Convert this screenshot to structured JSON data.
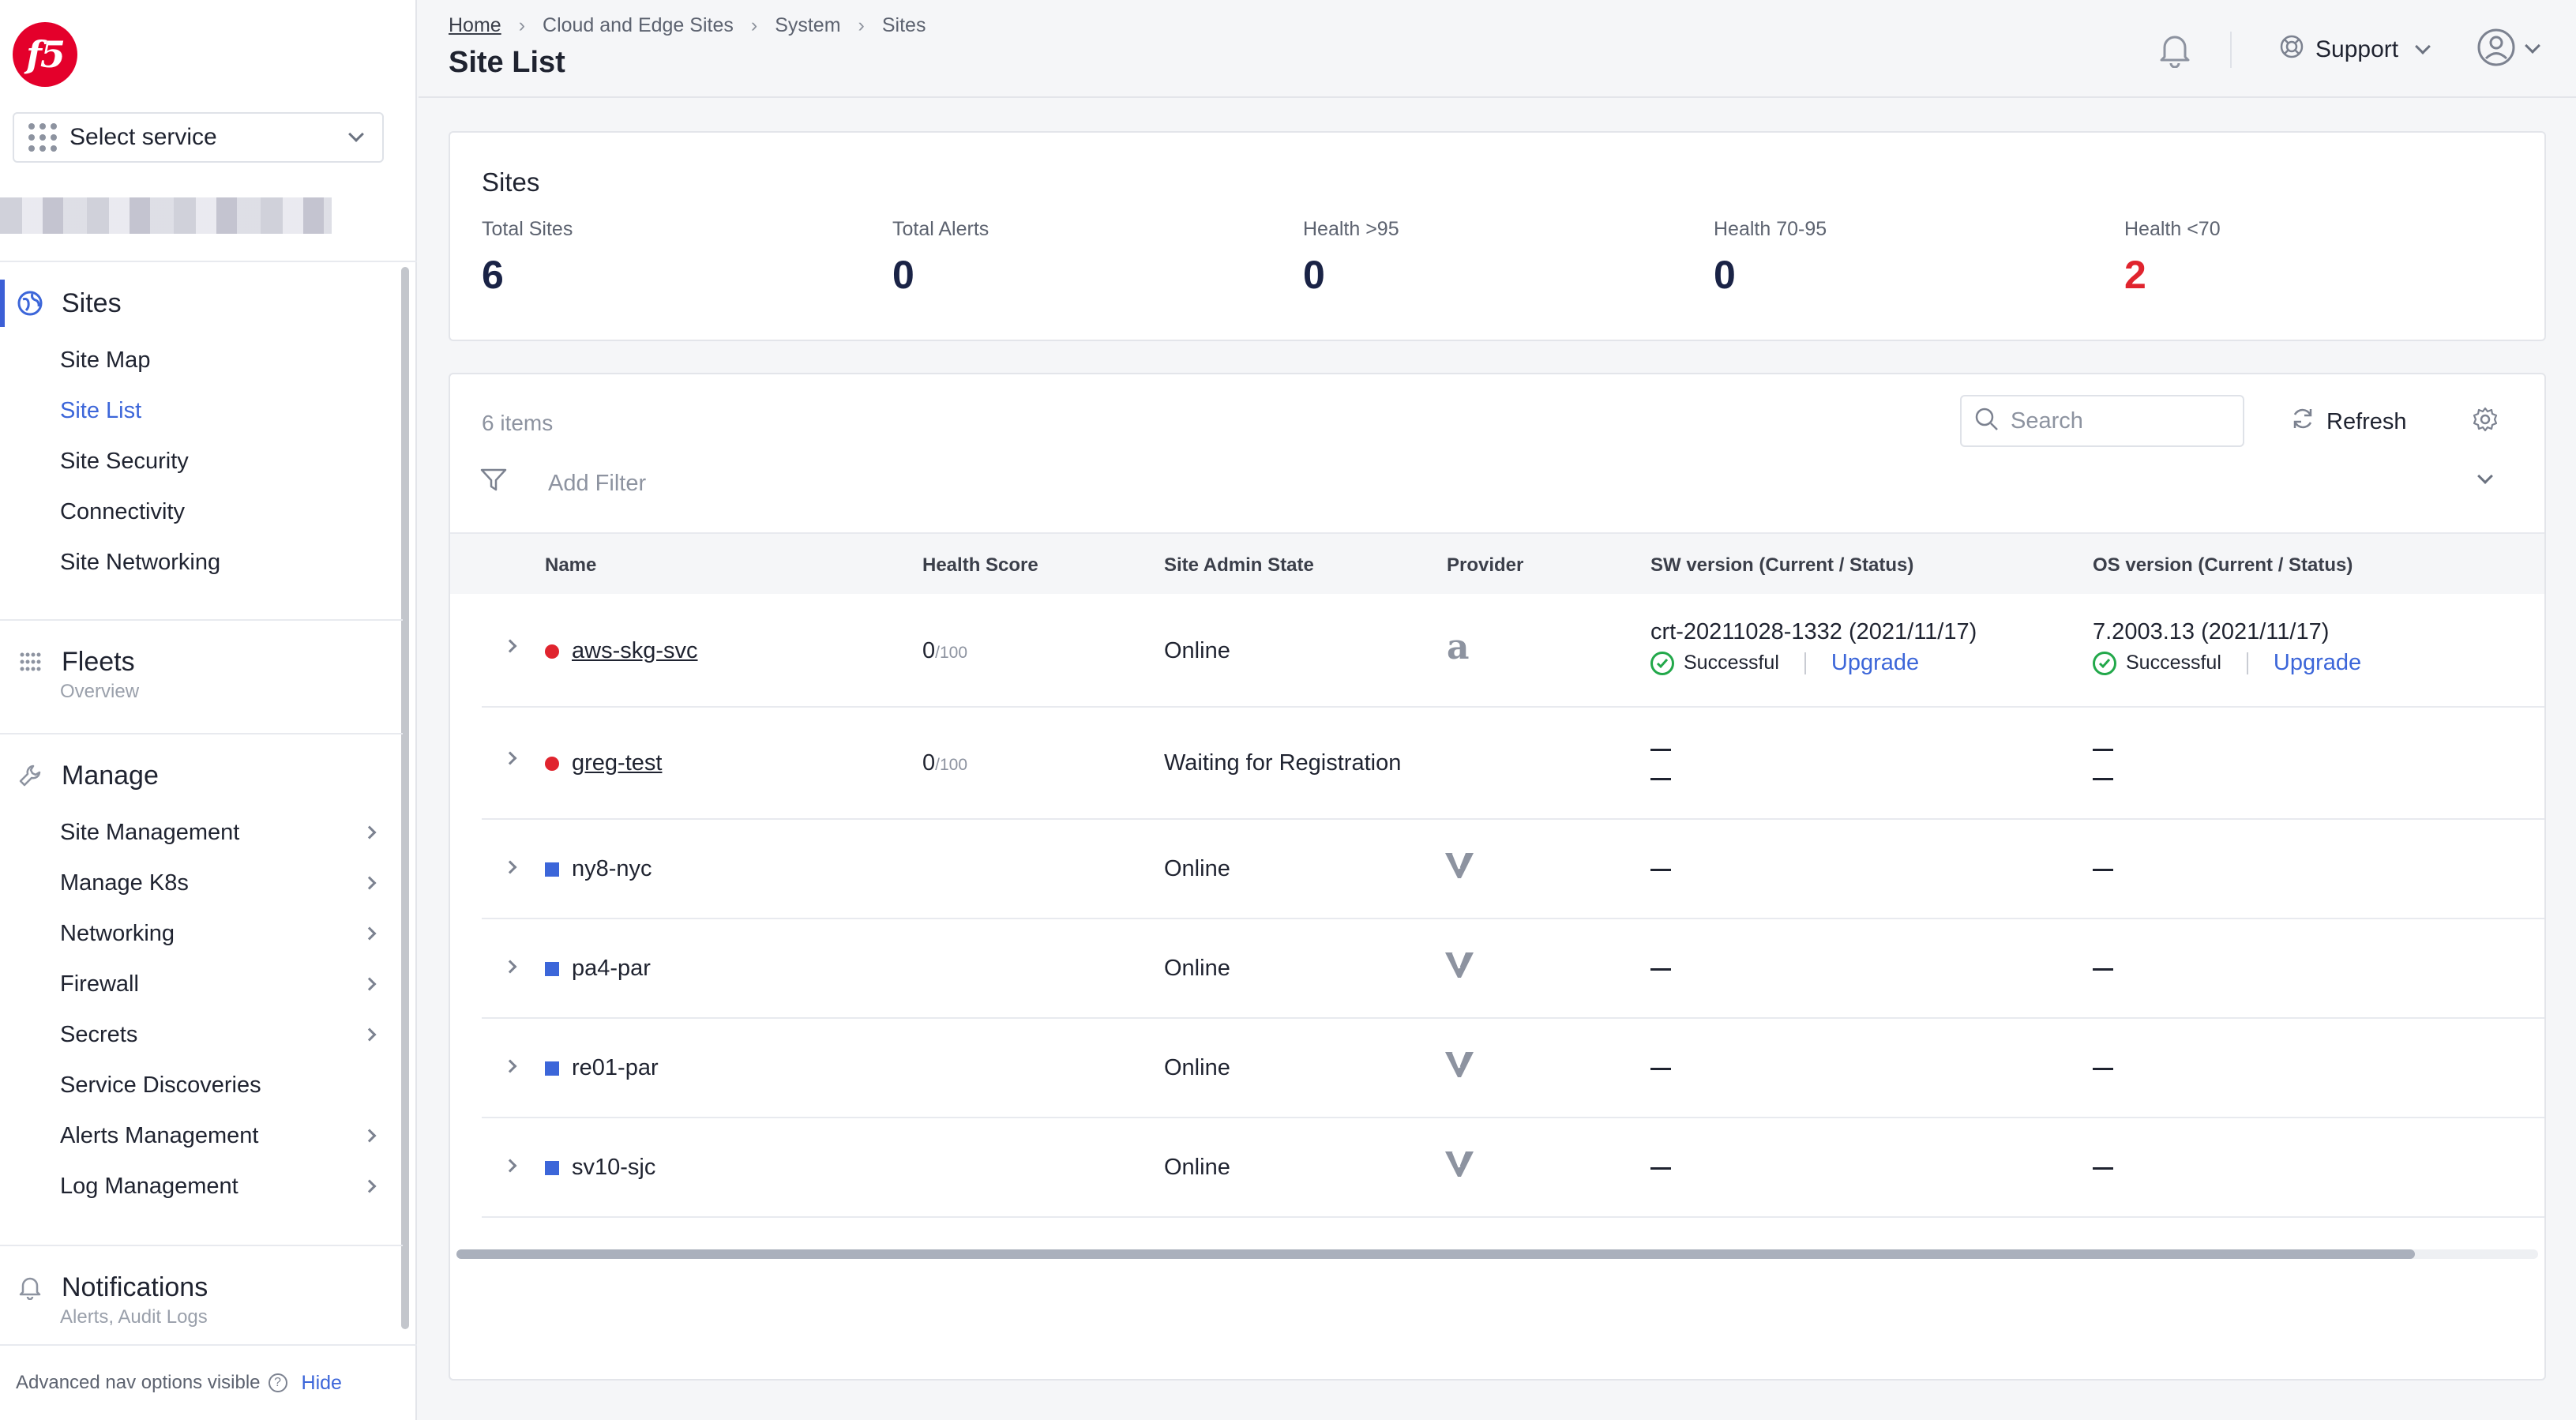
{
  "brand": {
    "logo_text": "f5",
    "colors": {
      "brand": "#e4002b",
      "accent": "#3c66d9",
      "danger": "#e0242e",
      "success": "#22a84a"
    }
  },
  "sidebar": {
    "service_select": {
      "label": "Select service"
    },
    "sections": {
      "sites": {
        "title": "Sites",
        "icon": "globe-icon",
        "items": [
          "Site Map",
          "Site List",
          "Site Security",
          "Connectivity",
          "Site Networking"
        ],
        "active_item": "Site List"
      },
      "fleets": {
        "title": "Fleets",
        "subtitle": "Overview",
        "icon": "fleets-icon"
      },
      "manage": {
        "title": "Manage",
        "icon": "wrench-icon",
        "items": [
          {
            "label": "Site Management",
            "has_submenu": true
          },
          {
            "label": "Manage K8s",
            "has_submenu": true
          },
          {
            "label": "Networking",
            "has_submenu": true
          },
          {
            "label": "Firewall",
            "has_submenu": true
          },
          {
            "label": "Secrets",
            "has_submenu": true
          },
          {
            "label": "Service Discoveries",
            "has_submenu": false
          },
          {
            "label": "Alerts Management",
            "has_submenu": true
          },
          {
            "label": "Log Management",
            "has_submenu": true
          }
        ]
      },
      "notifications": {
        "title": "Notifications",
        "subtitle": "Alerts, Audit Logs",
        "icon": "bell-icon"
      }
    },
    "footer": {
      "text": "Advanced nav options visible",
      "hide_link": "Hide"
    }
  },
  "header": {
    "breadcrumbs": [
      "Home",
      "Cloud and Edge Sites",
      "System",
      "Sites"
    ],
    "title": "Site List",
    "support_label": "Support"
  },
  "stats": {
    "title": "Sites",
    "items": [
      {
        "label": "Total Sites",
        "value": "6"
      },
      {
        "label": "Total Alerts",
        "value": "0"
      },
      {
        "label": "Health >95",
        "value": "0"
      },
      {
        "label": "Health 70-95",
        "value": "0"
      },
      {
        "label": "Health <70",
        "value": "2"
      }
    ]
  },
  "table": {
    "items_count": "6 items",
    "search_placeholder": "Search",
    "refresh_label": "Refresh",
    "filter_label": "Add Filter",
    "columns": [
      "Name",
      "Health Score",
      "Site Admin State",
      "Provider",
      "SW version (Current / Status)",
      "OS version (Current / Status)"
    ],
    "rows": [
      {
        "name": "aws-skg-svc",
        "marker": "red",
        "health": "0",
        "health_max": "/100",
        "state": "Online",
        "provider": "amazon",
        "sw_version": "crt-20211028-1332 (2021/11/17)",
        "sw_status": "Successful",
        "sw_action": "Upgrade",
        "os_version": "7.2003.13 (2021/11/17)",
        "os_status": "Successful",
        "os_action": "Upgrade"
      },
      {
        "name": "greg-test",
        "marker": "red",
        "health": "0",
        "health_max": "/100",
        "state": "Waiting for Registration",
        "provider": ""
      },
      {
        "name": "ny8-nyc",
        "marker": "blue",
        "state": "Online",
        "provider": "volterra"
      },
      {
        "name": "pa4-par",
        "marker": "blue",
        "state": "Online",
        "provider": "volterra"
      },
      {
        "name": "re01-par",
        "marker": "blue",
        "state": "Online",
        "provider": "volterra"
      },
      {
        "name": "sv10-sjc",
        "marker": "blue",
        "state": "Online",
        "provider": "volterra"
      }
    ]
  }
}
